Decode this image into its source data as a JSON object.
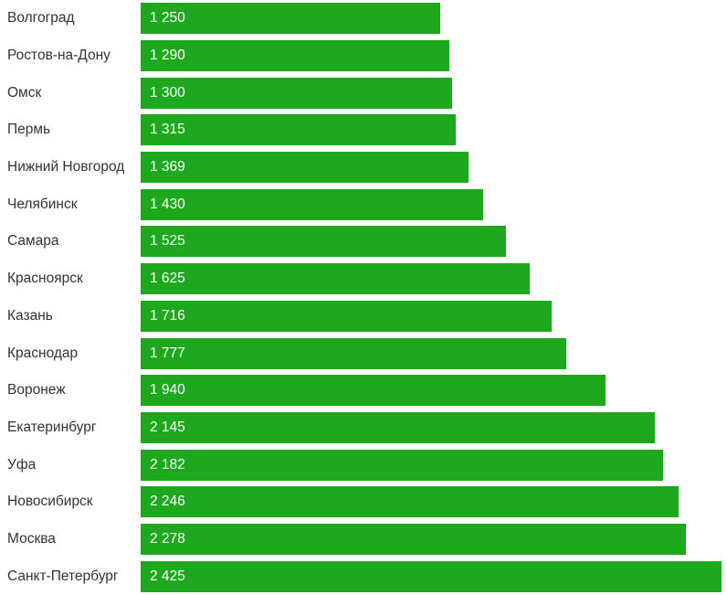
{
  "chart_data": {
    "type": "bar",
    "orientation": "horizontal",
    "title": "",
    "xlabel": "",
    "ylabel": "",
    "xlim": [
      0,
      2425
    ],
    "grid": false,
    "legend": null,
    "bar_color": "#1ea81e",
    "label_color": "#333333",
    "value_label_color": "#ffffff",
    "value_labels_position": "inside-start",
    "categories": [
      "Волгоград",
      "Ростов-на-Дону",
      "Омск",
      "Пермь",
      "Нижний Новгород",
      "Челябинск",
      "Самара",
      "Красноярск",
      "Казань",
      "Краснодар",
      "Воронеж",
      "Екатеринбург",
      "Уфа",
      "Новосибирск",
      "Москва",
      "Санкт-Петербург"
    ],
    "values": [
      1250,
      1290,
      1300,
      1315,
      1369,
      1430,
      1525,
      1625,
      1716,
      1777,
      1940,
      2145,
      2182,
      2246,
      2278,
      2425
    ],
    "value_labels": [
      "1 250",
      "1 290",
      "1 300",
      "1 315",
      "1 369",
      "1 430",
      "1 525",
      "1 625",
      "1 716",
      "1 777",
      "1 940",
      "2 145",
      "2 182",
      "2 246",
      "2 278",
      "2 425"
    ]
  }
}
